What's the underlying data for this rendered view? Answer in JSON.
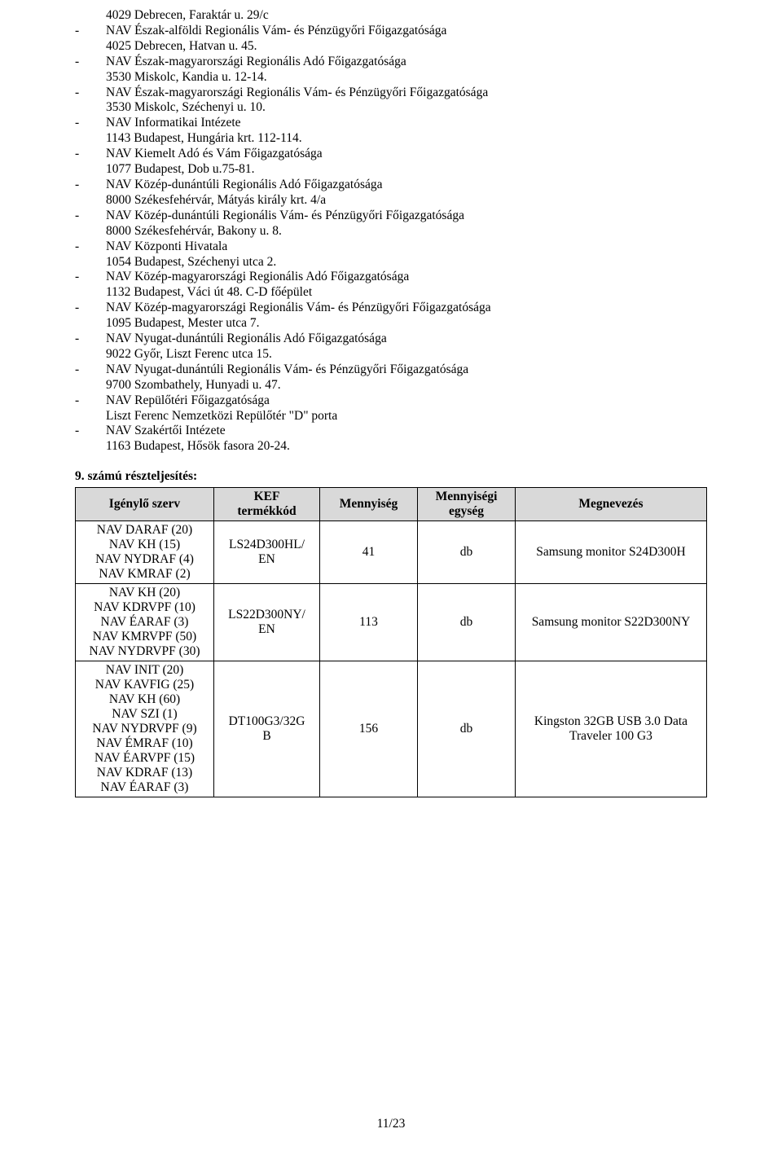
{
  "items": [
    {
      "dash": "",
      "lines": [
        "4029 Debrecen, Faraktár u. 29/c"
      ]
    },
    {
      "dash": "-",
      "lines": [
        "NAV Észak-alföldi Regionális Vám- és Pénzügyőri Főigazgatósága",
        "4025 Debrecen, Hatvan u. 45."
      ]
    },
    {
      "dash": "-",
      "lines": [
        "NAV Észak-magyarországi Regionális Adó Főigazgatósága",
        "3530 Miskolc, Kandia u. 12-14."
      ]
    },
    {
      "dash": "-",
      "lines": [
        "NAV Észak-magyarországi Regionális Vám- és Pénzügyőri Főigazgatósága",
        "3530 Miskolc, Széchenyi u. 10."
      ]
    },
    {
      "dash": "-",
      "lines": [
        "NAV Informatikai Intézete",
        "1143 Budapest, Hungária krt. 112-114."
      ]
    },
    {
      "dash": "-",
      "lines": [
        "NAV Kiemelt Adó és Vám Főigazgatósága",
        "1077 Budapest, Dob u.75-81."
      ]
    },
    {
      "dash": "-",
      "lines": [
        "NAV Közép-dunántúli Regionális Adó Főigazgatósága",
        "8000 Székesfehérvár, Mátyás király krt. 4/a"
      ]
    },
    {
      "dash": "-",
      "lines": [
        "NAV Közép-dunántúli Regionális Vám- és Pénzügyőri Főigazgatósága",
        "8000 Székesfehérvár, Bakony u. 8."
      ]
    },
    {
      "dash": "-",
      "lines": [
        "NAV Központi Hivatala",
        "1054 Budapest, Széchenyi utca 2."
      ]
    },
    {
      "dash": "-",
      "lines": [
        "NAV Közép-magyarországi Regionális Adó Főigazgatósága",
        "1132 Budapest, Váci út 48. C-D főépület"
      ]
    },
    {
      "dash": "-",
      "lines": [
        "NAV Közép-magyarországi Regionális Vám- és Pénzügyőri Főigazgatósága",
        "1095 Budapest, Mester utca 7."
      ]
    },
    {
      "dash": "-",
      "lines": [
        "NAV Nyugat-dunántúli Regionális Adó Főigazgatósága",
        "9022 Győr, Liszt Ferenc utca 15."
      ]
    },
    {
      "dash": "-",
      "lines": [
        "NAV Nyugat-dunántúli Regionális Vám- és Pénzügyőri Főigazgatósága",
        "9700 Szombathely, Hunyadi u. 47."
      ]
    },
    {
      "dash": "-",
      "lines": [
        "NAV Repülőtéri Főigazgatósága",
        "Liszt Ferenc Nemzetközi Repülőtér \"D\" porta"
      ]
    },
    {
      "dash": "-",
      "lines": [
        "NAV Szakértői Intézete",
        "1163 Budapest, Hősök fasora 20-24."
      ]
    }
  ],
  "section_title": "9. számú részteljesítés:",
  "table": {
    "headers": [
      "Igénylő szerv",
      "KEF termékkód",
      "Mennyiség",
      "Mennyiségi egység",
      "Megnevezés"
    ],
    "rows": [
      {
        "org_lines": [
          "NAV DARAF (20)",
          "NAV KH (15)",
          "NAV NYDRAF (4)",
          "NAV KMRAF (2)"
        ],
        "kef_lines": [
          "LS24D300HL/",
          "EN"
        ],
        "qty": "41",
        "unit": "db",
        "name_lines": [
          "Samsung monitor S24D300H"
        ]
      },
      {
        "org_lines": [
          "NAV KH (20)",
          "NAV KDRVPF (10)",
          "NAV ÉARAF (3)",
          "NAV KMRVPF (50)",
          "NAV NYDRVPF (30)"
        ],
        "kef_lines": [
          "LS22D300NY/",
          "EN"
        ],
        "qty": "113",
        "unit": "db",
        "name_lines": [
          "Samsung monitor S22D300NY"
        ]
      },
      {
        "org_lines": [
          "NAV INIT (20)",
          "NAV KAVFIG (25)",
          "NAV KH (60)",
          "NAV SZI (1)",
          "NAV NYDRVPF (9)",
          "NAV ÉMRAF (10)",
          "NAV ÉARVPF (15)",
          "NAV KDRAF (13)",
          "NAV ÉARAF (3)"
        ],
        "kef_lines": [
          "DT100G3/32G",
          "B"
        ],
        "qty": "156",
        "unit": "db",
        "name_lines": [
          "Kingston 32GB USB 3.0 Data",
          "Traveler 100 G3"
        ]
      }
    ]
  },
  "page_number": "11/23"
}
